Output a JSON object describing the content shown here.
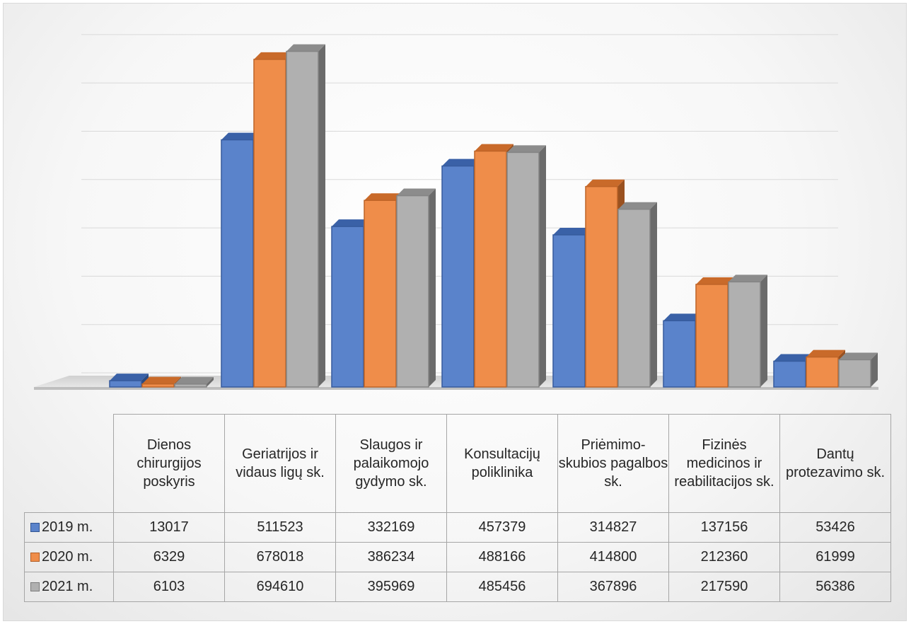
{
  "chart_data": {
    "type": "bar",
    "style": "3d-clustered-column-with-data-table",
    "categories": [
      "Dienos chirurgijos poskyris",
      "Geriatrijos ir vidaus ligų sk.",
      "Slaugos ir palaikomojo gydymo sk.",
      "Konsultacijų poliklinika",
      "Priėmimo-skubios pagalbos sk.",
      "Fizinės medicinos ir reabilitacijos sk.",
      "Dantų protezavimo sk."
    ],
    "series": [
      {
        "name": "2019 m.",
        "color": "#4472c4",
        "values": [
          13017,
          511523,
          332169,
          457379,
          314827,
          137156,
          53426
        ]
      },
      {
        "name": "2020 m.",
        "color": "#ed7d31",
        "values": [
          6329,
          678018,
          386234,
          488166,
          414800,
          212360,
          61999
        ]
      },
      {
        "name": "2021 m.",
        "color": "#a5a5a5",
        "values": [
          6103,
          694610,
          395969,
          485456,
          367896,
          217590,
          56386
        ]
      }
    ],
    "ylim": [
      0,
      700000
    ],
    "grid": true,
    "legend": "in-table",
    "title": "",
    "xlabel": "",
    "ylabel": ""
  }
}
